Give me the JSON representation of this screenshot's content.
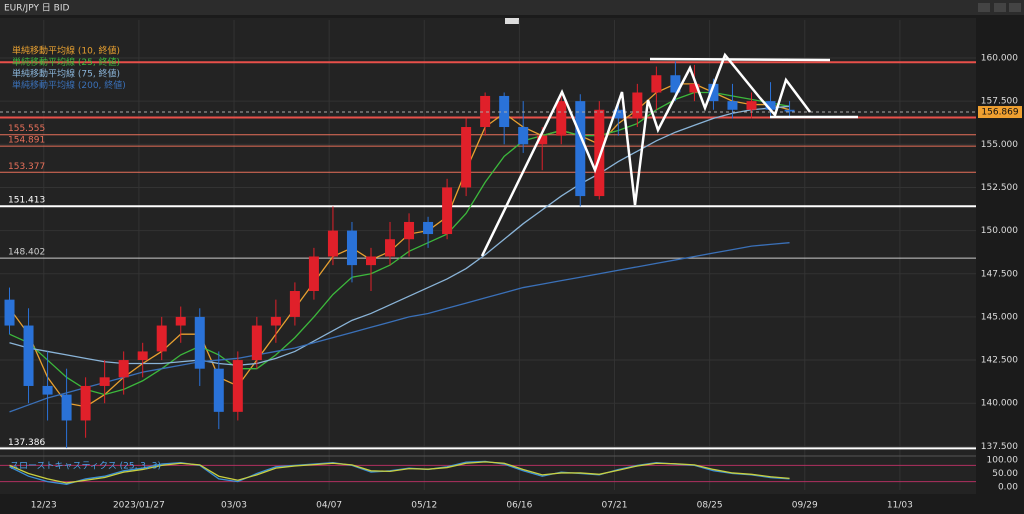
{
  "window": {
    "title": "EUR/JPY 日 BID"
  },
  "chart_data": [
    {
      "type": "candlestick",
      "categories": [
        null,
        null,
        null,
        null,
        null,
        null,
        null,
        null,
        null,
        null,
        null,
        null,
        null,
        null,
        null,
        null,
        null,
        null,
        null,
        null,
        null,
        null,
        null,
        null,
        null,
        null,
        null,
        null,
        null,
        null,
        null,
        null,
        null,
        null,
        null,
        null,
        null,
        null,
        null,
        null,
        null,
        null
      ],
      "xlim": [
        -0.5,
        50.8
      ],
      "xticks": [
        {
          "value": 1.8,
          "label": "12/23"
        },
        {
          "value": 6.8,
          "label": "2023/01/27"
        },
        {
          "value": 11.8,
          "label": "03/03"
        },
        {
          "value": 16.8,
          "label": "04/07"
        },
        {
          "value": 21.8,
          "label": "05/12"
        },
        {
          "value": 26.8,
          "label": "06/16"
        },
        {
          "value": 31.8,
          "label": "07/21"
        },
        {
          "value": 36.8,
          "label": "08/25"
        },
        {
          "value": 41.8,
          "label": "09/29"
        },
        {
          "value": 46.8,
          "label": "11/03"
        }
      ],
      "ylim": [
        137.0,
        162.2
      ],
      "yticks": [
        {
          "value": 137.5,
          "label": "137.500"
        },
        {
          "value": 140,
          "label": "140.000"
        },
        {
          "value": 142.5,
          "label": "142.500"
        },
        {
          "value": 145,
          "label": "145.000"
        },
        {
          "value": 147.5,
          "label": "147.500"
        },
        {
          "value": 150,
          "label": "150.000"
        },
        {
          "value": 152.5,
          "label": "152.500"
        },
        {
          "value": 155,
          "label": "155.000"
        },
        {
          "value": 157.5,
          "label": "157.500"
        },
        {
          "value": 160,
          "label": "160.000"
        }
      ],
      "grid": true,
      "up_color": "#e0202a",
      "down_color": "#2a72d8",
      "open": [
        146,
        144.5,
        141,
        140.5,
        139,
        141,
        141.5,
        142.5,
        143,
        144.5,
        145,
        142,
        139.5,
        142.5,
        144.5,
        145,
        146.5,
        148.5,
        150,
        148,
        148.5,
        149.5,
        150.5,
        149.8,
        152.5,
        156,
        157.8,
        156,
        155,
        155.5,
        157.5,
        152,
        157,
        156.5,
        158,
        159,
        158,
        158.5,
        157.5,
        157,
        157.5,
        157
      ],
      "high": [
        146.7,
        145.5,
        143,
        142,
        141.5,
        142.5,
        143,
        143.5,
        145,
        145.6,
        145.5,
        143,
        143,
        145,
        146,
        147,
        149,
        151.4,
        150.5,
        149,
        150.5,
        151,
        150.8,
        153,
        156.5,
        158,
        158,
        157.5,
        156,
        158,
        157.9,
        157.5,
        157.6,
        158.5,
        159.5,
        159.8,
        159.6,
        158.8,
        158.5,
        158,
        158.6,
        157.5
      ],
      "low": [
        144,
        140,
        139,
        137.4,
        138,
        140,
        140.5,
        141.5,
        142.5,
        143.5,
        141,
        138.5,
        139,
        142,
        143.5,
        144.5,
        146,
        148,
        147,
        146.5,
        148,
        148.5,
        149,
        149.5,
        152,
        155.5,
        155,
        154.5,
        153.5,
        155,
        151.4,
        151.8,
        155.5,
        156,
        157,
        157.5,
        157.5,
        157,
        156.5,
        156.5,
        156.5,
        156.5
      ],
      "close": [
        144.5,
        141,
        140.5,
        139,
        141,
        141.5,
        142.5,
        143,
        144.5,
        145,
        142,
        139.5,
        142.5,
        144.5,
        145,
        146.5,
        148.5,
        150,
        148,
        148.5,
        149.5,
        150.5,
        149.8,
        152.5,
        156,
        157.8,
        156,
        155,
        155.5,
        157.5,
        152,
        157,
        156.5,
        158,
        159,
        158,
        158.5,
        157.5,
        157,
        157.5,
        157,
        156.9
      ],
      "series": [
        {
          "name": "単純移動平均線 (10, 終値)",
          "color": "#e8a030",
          "values": [
            145.5,
            144,
            141.5,
            140,
            139.8,
            140.5,
            141.5,
            142.3,
            143,
            144,
            144,
            141.5,
            141,
            142.5,
            144,
            145.5,
            147,
            148.5,
            149,
            148.3,
            148.8,
            149.8,
            150,
            150.8,
            153.5,
            156,
            156.8,
            156,
            155.5,
            155.8,
            155.5,
            155,
            156.2,
            157,
            158,
            158.5,
            158.5,
            158,
            157.5,
            157.3,
            157.3,
            157
          ]
        },
        {
          "name": "単純移動平均線 (25, 終値)",
          "color": "#3cb83c",
          "values": [
            144,
            143.5,
            142.5,
            141.5,
            140.8,
            140.5,
            140.8,
            141.3,
            142,
            142.8,
            143.3,
            142.8,
            142,
            142,
            142.8,
            143.8,
            145,
            146.3,
            147.3,
            147.5,
            148,
            148.8,
            149.3,
            149.8,
            151,
            152.8,
            154.3,
            155.2,
            155.5,
            155.8,
            155.5,
            155.5,
            155.8,
            156.2,
            157,
            157.6,
            158,
            158,
            157.8,
            157.6,
            157.4,
            157.2
          ]
        },
        {
          "name": "単純移動平均線 (75, 終値)",
          "color": "#8ab4d8",
          "values": [
            143.5,
            143.2,
            143,
            142.8,
            142.6,
            142.4,
            142.3,
            142.3,
            142.3,
            142.4,
            142.5,
            142.3,
            142.2,
            142.3,
            142.6,
            143,
            143.6,
            144.2,
            144.8,
            145.2,
            145.7,
            146.2,
            146.7,
            147.2,
            147.8,
            148.6,
            149.5,
            150.4,
            151.2,
            152,
            152.7,
            153.3,
            154,
            154.6,
            155.2,
            155.7,
            156.1,
            156.5,
            156.8,
            157,
            157.1,
            157.2
          ]
        },
        {
          "name": "単純移動平均線 (200, 終値)",
          "color": "#3a70b8",
          "values": [
            139.5,
            139.9,
            140.3,
            140.6,
            140.9,
            141.2,
            141.5,
            141.8,
            142,
            142.2,
            142.4,
            142.5,
            142.6,
            142.8,
            143,
            143.2,
            143.5,
            143.8,
            144.1,
            144.4,
            144.7,
            145,
            145.2,
            145.5,
            145.8,
            146.1,
            146.4,
            146.7,
            146.9,
            147.1,
            147.3,
            147.5,
            147.7,
            147.9,
            148.1,
            148.3,
            148.5,
            148.7,
            148.9,
            149.1,
            149.2,
            149.3
          ]
        }
      ],
      "levels": [
        {
          "value": 155.555,
          "color": "#e8705a"
        },
        {
          "value": 154.891,
          "color": "#e8705a"
        },
        {
          "value": 153.377,
          "color": "#e8705a"
        },
        {
          "value": 151.413,
          "color": "#ffffff"
        },
        {
          "value": 148.402,
          "color": "#cccccc"
        },
        {
          "value": 137.386,
          "color": "#ffffff"
        }
      ],
      "price_lines": [
        {
          "value": 159.75,
          "color": "#e8504a"
        },
        {
          "value": 156.55,
          "color": "#e8504a"
        }
      ],
      "last_price": 156.869
    },
    {
      "type": "line",
      "title": "スローストキャスティクス (25, 3, 3)",
      "ylim": [
        0,
        100
      ],
      "yticks": [
        {
          "value": 0,
          "label": "0.00"
        },
        {
          "value": 50,
          "label": "50.00"
        },
        {
          "value": 100,
          "label": "100.00"
        }
      ],
      "levels": [
        {
          "value": 80,
          "color": "#b03060"
        },
        {
          "value": 20,
          "color": "#b03060"
        }
      ],
      "series": [
        {
          "color": "#3a8fd8",
          "values": [
            75,
            40,
            20,
            10,
            30,
            40,
            60,
            70,
            85,
            90,
            80,
            30,
            20,
            50,
            75,
            80,
            85,
            90,
            80,
            55,
            60,
            70,
            65,
            75,
            92,
            95,
            85,
            60,
            40,
            55,
            50,
            45,
            65,
            80,
            90,
            85,
            80,
            60,
            50,
            45,
            35,
            30
          ]
        },
        {
          "color": "#c8d040",
          "values": [
            80,
            50,
            30,
            15,
            25,
            35,
            55,
            65,
            80,
            88,
            82,
            40,
            25,
            45,
            70,
            78,
            83,
            88,
            82,
            60,
            58,
            68,
            66,
            72,
            88,
            93,
            88,
            65,
            45,
            52,
            52,
            47,
            62,
            78,
            88,
            86,
            82,
            65,
            52,
            47,
            38,
            32
          ]
        }
      ]
    }
  ]
}
